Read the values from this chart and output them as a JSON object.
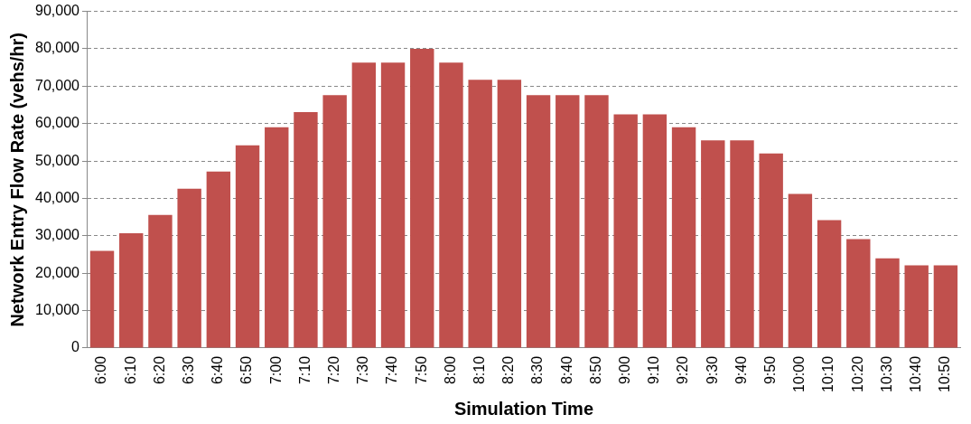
{
  "chart_data": {
    "type": "bar",
    "xlabel": "Simulation Time",
    "ylabel": "Network Entry Flow Rate (vehs/hr)",
    "categories": [
      "6:00",
      "6:10",
      "6:20",
      "6:30",
      "6:40",
      "6:50",
      "7:00",
      "7:10",
      "7:20",
      "7:30",
      "7:40",
      "7:50",
      "8:00",
      "8:10",
      "8:20",
      "8:30",
      "8:40",
      "8:50",
      "9:00",
      "9:10",
      "9:20",
      "9:30",
      "9:40",
      "9:50",
      "10:00",
      "10:10",
      "10:20",
      "10:30",
      "10:40",
      "10:50"
    ],
    "values": [
      26000,
      30700,
      35600,
      42600,
      47200,
      54200,
      59000,
      63100,
      67600,
      76300,
      76300,
      80000,
      76300,
      71700,
      71700,
      67600,
      67600,
      67600,
      62500,
      62500,
      59000,
      55500,
      55500,
      52000,
      41200,
      34200,
      29100,
      24000,
      22100,
      22100
    ],
    "color": "#c0504d",
    "ylim": [
      0,
      90000
    ],
    "yticks": [
      0,
      {
        "value": 10000,
        "label": "10,000"
      },
      {
        "value": 20000,
        "label": "20,000"
      },
      {
        "value": 30000,
        "label": "30,000"
      },
      {
        "value": 40000,
        "label": "40,000"
      },
      {
        "value": 50000,
        "label": "50,000"
      },
      {
        "value": 60000,
        "label": "60,000"
      },
      {
        "value": 70000,
        "label": "70,000"
      },
      {
        "value": 80000,
        "label": "80,000"
      },
      {
        "value": 90000,
        "label": "90,000"
      }
    ],
    "grid": "y"
  }
}
